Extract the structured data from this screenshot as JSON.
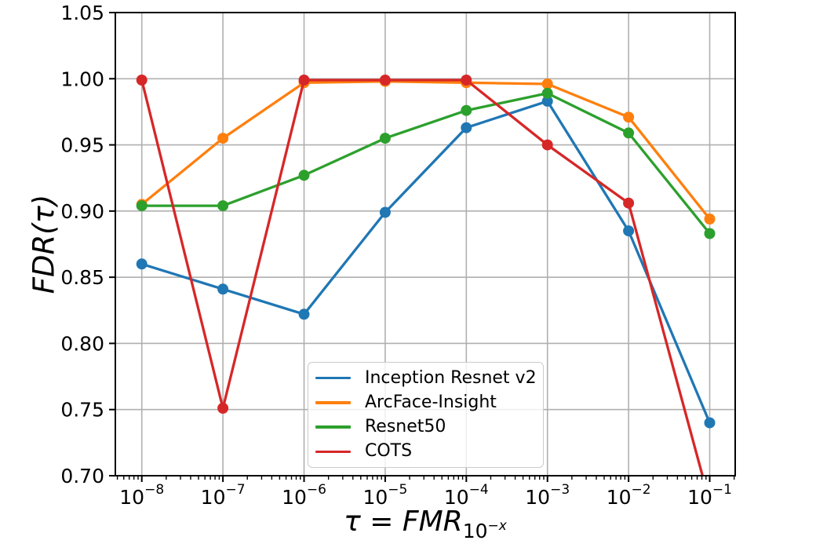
{
  "figure": {
    "ylabel": "FDR(τ)",
    "xlabel_main": "τ = FMR",
    "xlabel_sub_base": "10",
    "xlabel_sub_exp": "−x"
  },
  "axes": {
    "xscale": "log",
    "grid": true,
    "grid_color": "#b0b0b0",
    "spine_color": "#000000",
    "ylim": [
      0.7,
      1.05
    ],
    "y_ticks": [
      0.7,
      0.75,
      0.8,
      0.85,
      0.9,
      0.95,
      1.0,
      1.05
    ],
    "y_tick_labels": [
      "0.70",
      "0.75",
      "0.80",
      "0.85",
      "0.90",
      "0.95",
      "1.00",
      "1.05"
    ],
    "x_tick_exponents": [
      -8,
      -7,
      -6,
      -5,
      -4,
      -3,
      -2,
      -1
    ],
    "x_tick_labels": [
      "10⁻⁸",
      "10⁻⁷",
      "10⁻⁶",
      "10⁻⁵",
      "10⁻⁴",
      "10⁻³",
      "10⁻²",
      "10⁻¹"
    ],
    "xlim_exponents": [
      -8.326,
      -0.686
    ]
  },
  "chart_data": {
    "type": "line",
    "title": "",
    "xlabel": "τ = FMR_10^−x",
    "ylabel": "FDR(τ)",
    "x_categories": [
      "1e-8",
      "1e-7",
      "1e-6",
      "1e-5",
      "1e-4",
      "1e-3",
      "1e-2",
      "1e-1"
    ],
    "x_exponents": [
      -8,
      -7,
      -6,
      -5,
      -4,
      -3,
      -2,
      -1
    ],
    "ylim": [
      0.7,
      1.05
    ],
    "legend_position": "lower center",
    "series": [
      {
        "name": "Inception Resnet v2",
        "color": "#1f77b4",
        "values": [
          0.86,
          0.841,
          0.822,
          0.899,
          0.963,
          0.983,
          0.885,
          0.74
        ]
      },
      {
        "name": "ArcFace-Insight",
        "color": "#ff7f0e",
        "values": [
          0.905,
          0.955,
          0.997,
          0.998,
          0.997,
          0.996,
          0.971,
          0.894
        ]
      },
      {
        "name": "Resnet50",
        "color": "#2ca02c",
        "values": [
          0.904,
          0.904,
          0.927,
          0.955,
          0.976,
          0.989,
          0.959,
          0.883
        ]
      },
      {
        "name": "COTS",
        "color": "#d62728",
        "values": [
          0.999,
          0.751,
          0.999,
          0.999,
          0.999,
          0.95,
          0.906,
          0.68
        ]
      }
    ]
  }
}
